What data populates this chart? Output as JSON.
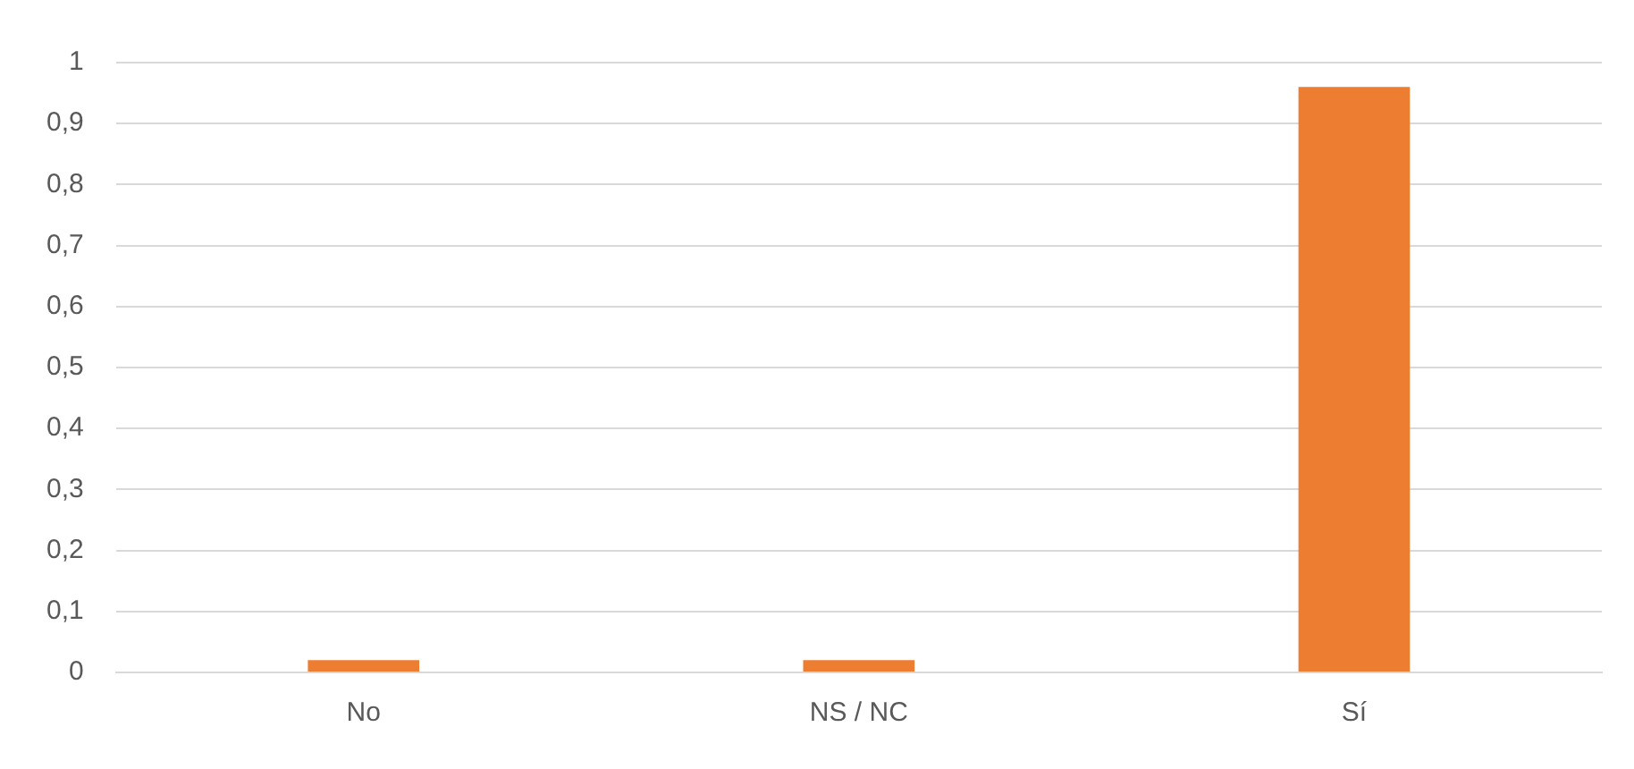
{
  "chart_data": {
    "type": "bar",
    "categories": [
      "No",
      "NS / NC",
      "Sí"
    ],
    "values": [
      0.02,
      0.02,
      0.96
    ],
    "color": "#ed7d31",
    "ylim": [
      0,
      1
    ],
    "yticks": [
      0,
      {
        "value": 0.1,
        "label": "0,1"
      },
      {
        "value": 0.2,
        "label": "0,2"
      },
      {
        "value": 0.3,
        "label": "0,3"
      },
      {
        "value": 0.4,
        "label": "0,4"
      },
      {
        "value": 0.5,
        "label": "0,5"
      },
      {
        "value": 0.6,
        "label": "0,6"
      },
      {
        "value": 0.7,
        "label": "0,7"
      },
      {
        "value": 0.8,
        "label": "0,8"
      },
      {
        "value": 0.9,
        "label": "0,9"
      },
      1
    ],
    "grid": "y",
    "legend": false
  }
}
